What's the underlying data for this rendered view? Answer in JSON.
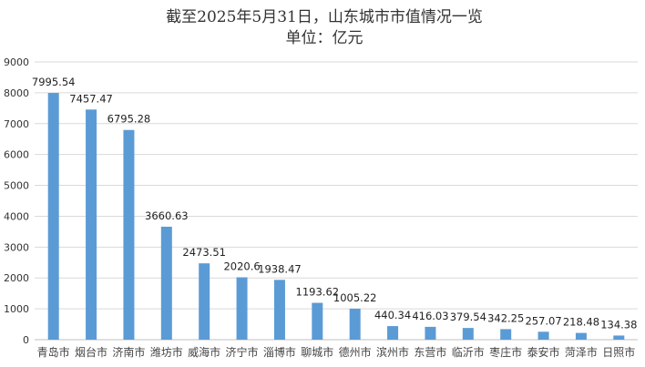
{
  "chart_data": {
    "type": "bar",
    "title": "截至2025年5月31日，山东城市市值情况一览",
    "subtitle": "单位：亿元",
    "xlabel": "",
    "ylabel": "",
    "categories": [
      "青岛市",
      "烟台市",
      "济南市",
      "潍坊市",
      "威海市",
      "济宁市",
      "淄博市",
      "聊城市",
      "德州市",
      "滨州市",
      "东营市",
      "临沂市",
      "枣庄市",
      "泰安市",
      "菏泽市",
      "日照市"
    ],
    "values": [
      7995.54,
      7457.47,
      6795.28,
      3660.63,
      2473.51,
      2020.6,
      1938.47,
      1193.62,
      1005.22,
      440.34,
      416.03,
      379.54,
      342.25,
      257.07,
      218.48,
      134.38
    ],
    "data_labels": [
      "7995.54",
      "7457.47",
      "6795.28",
      "3660.63",
      "2473.51",
      "2020.6",
      "1938.47",
      "1193.62",
      "1005.22",
      "440.34",
      "416.03",
      "379.54",
      "342.25",
      "257.07",
      "218.48",
      "134.38"
    ],
    "ylim": [
      0,
      9000
    ],
    "yticks": [
      0,
      1000,
      2000,
      3000,
      4000,
      5000,
      6000,
      7000,
      8000,
      9000
    ],
    "grid": true,
    "legend": "none",
    "bar_color": "#5b9bd5"
  }
}
